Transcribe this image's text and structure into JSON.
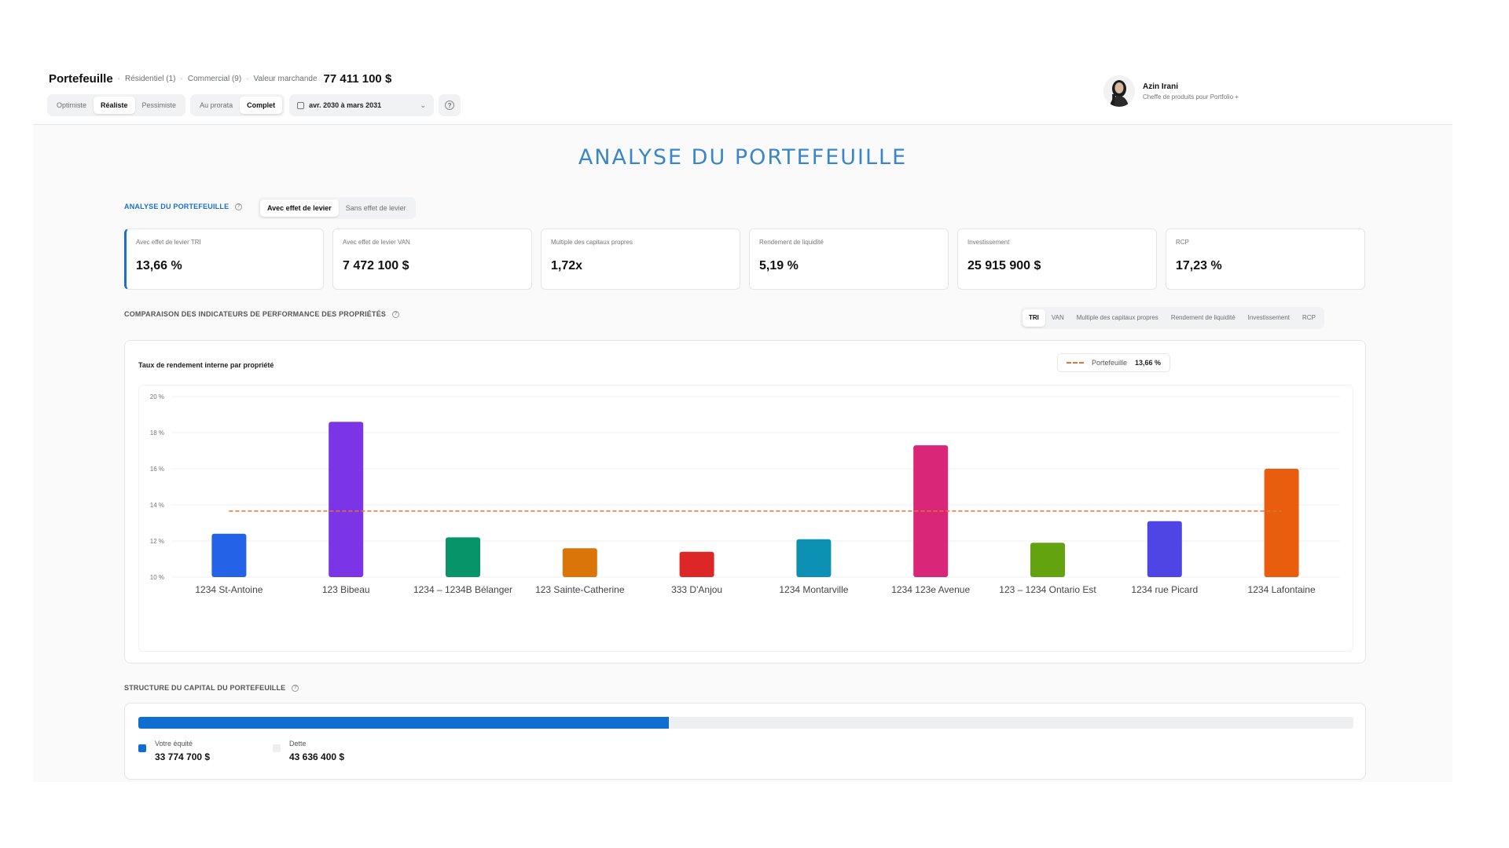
{
  "header": {
    "title": "Portefeuille",
    "residential": "Résidentiel (1)",
    "commercial": "Commercial (9)",
    "market_value_label": "Valeur marchande",
    "market_value": "77 411 100 $",
    "scenarios": [
      "Optimiste",
      "Réaliste",
      "Pessimiste"
    ],
    "scenario_selected": "Réaliste",
    "modes": [
      "Au prorata",
      "Complet"
    ],
    "mode_selected": "Complet",
    "date_range": "avr. 2030 à mars 2031"
  },
  "user": {
    "name": "Azin Irani",
    "role": "Cheffe de produits pour Portfolio +"
  },
  "page_title": "ANALYSE DU PORTEFEUILLE",
  "analysis": {
    "label": "ANALYSE DU PORTEFEUILLE",
    "toggle": [
      "Avec effet de levier",
      "Sans effet de levier"
    ],
    "toggle_selected": "Avec effet de levier"
  },
  "kpis": [
    {
      "label": "Avec effet de levier TRI",
      "value": "13,66 %"
    },
    {
      "label": "Avec effet de levier VAN",
      "value": "7 472 100 $"
    },
    {
      "label": "Multiple des capitaux propres",
      "value": "1,72x"
    },
    {
      "label": "Rendement de liquidité",
      "value": "5,19 %"
    },
    {
      "label": "Investissement",
      "value": "25 915 900 $"
    },
    {
      "label": "RCP",
      "value": "17,23 %"
    }
  ],
  "comparison": {
    "label": "COMPARAISON DES INDICATEURS DE PERFORMANCE DES PROPRIÉTÉS",
    "tabs": [
      "TRI",
      "VAN",
      "Multiple des capitaux propres",
      "Rendement de liquidité",
      "Investissement",
      "RCP"
    ],
    "tab_selected": "TRI"
  },
  "chart_card": {
    "title": "Taux de rendement interne par propriété",
    "legend_name": "Portefeuille",
    "legend_value": "13,66 %"
  },
  "chart_data": {
    "type": "bar",
    "title": "Taux de rendement interne par propriété",
    "categories": [
      "1234 St-Antoine",
      "123 Bibeau",
      "1234 – 1234B Bélanger",
      "123 Sainte-Catherine",
      "333 D'Anjou",
      "1234 Montarville",
      "1234 123e Avenue",
      "123 – 1234 Ontario Est",
      "1234 rue Picard",
      "1234 Lafontaine"
    ],
    "values": [
      12.4,
      18.6,
      12.2,
      11.6,
      11.4,
      12.1,
      17.3,
      11.9,
      13.1,
      16.0
    ],
    "colors": [
      "#2463e8",
      "#7b35e6",
      "#069468",
      "#da7509",
      "#dd2727",
      "#0c90b4",
      "#d92679",
      "#63a30f",
      "#4f45e4",
      "#e95e0e"
    ],
    "reference_line": {
      "name": "Portefeuille",
      "value": 13.66,
      "color": "#e8742c"
    },
    "yticks": [
      10,
      12,
      14,
      16,
      18,
      20
    ],
    "ytick_labels": [
      "10 %",
      "12 %",
      "14 %",
      "16 %",
      "18 %",
      "20 %"
    ],
    "ylim": [
      10,
      20
    ],
    "grid": true
  },
  "capital": {
    "label": "STRUCTURE DU CAPITAL DU PORTEFEUILLE",
    "equity_label": "Votre équité",
    "equity_value": "33 774 700 $",
    "debt_label": "Dette",
    "debt_value": "43 636 400 $",
    "equity_fraction": 0.4363,
    "equity_color": "#0f6fd1",
    "debt_color": "#eeeff1"
  }
}
